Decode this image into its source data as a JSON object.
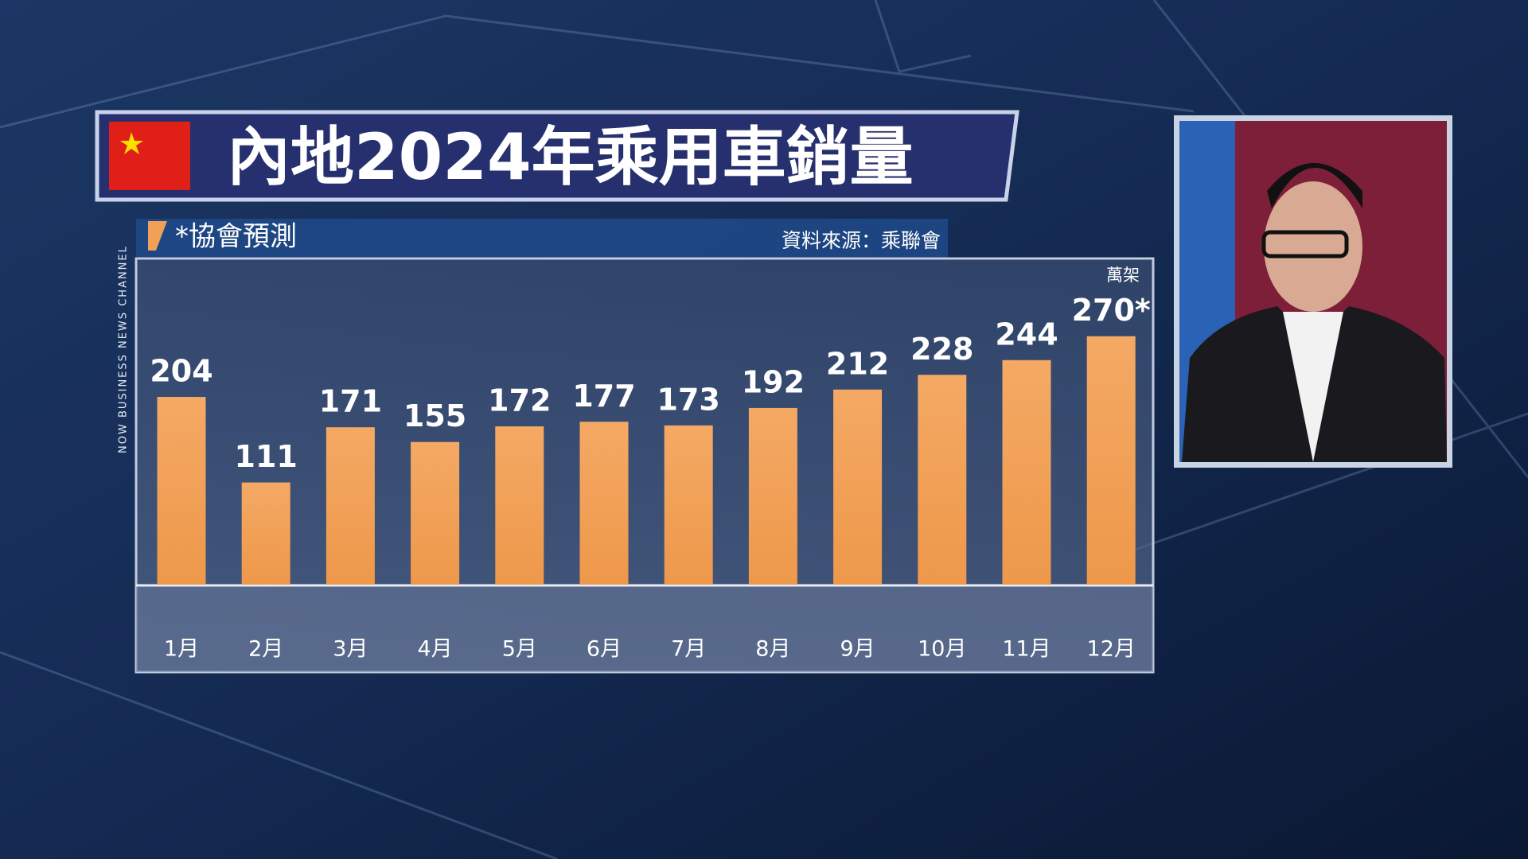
{
  "chart_data": {
    "type": "bar",
    "title": "內地2024年乘用車銷量",
    "note": "*協會預測",
    "source": "資料來源：乘聯會",
    "unit": "萬架",
    "channel": "NOW BUSINESS NEWS CHANNEL",
    "categories": [
      "1月",
      "2月",
      "3月",
      "4月",
      "5月",
      "6月",
      "7月",
      "8月",
      "9月",
      "10月",
      "11月",
      "12月"
    ],
    "values": [
      204,
      111,
      171,
      155,
      172,
      177,
      173,
      192,
      212,
      228,
      244,
      270
    ],
    "value_labels": [
      "204",
      "111",
      "171",
      "155",
      "172",
      "177",
      "173",
      "192",
      "212",
      "228",
      "244",
      "270*"
    ],
    "color": "#f0a057",
    "ylim": [
      0,
      300
    ]
  }
}
